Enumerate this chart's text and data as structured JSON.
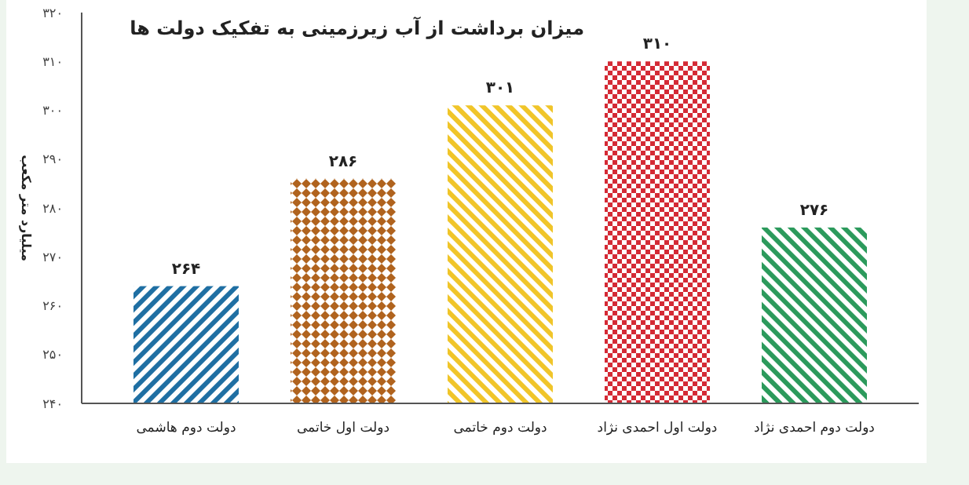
{
  "chart_data": {
    "type": "bar",
    "title": "میزان برداشت از آب زیرزمینی به تفکیک دولت ها",
    "ylabel": "میلیارد متر مکعب",
    "categories": [
      "دولت دوم هاشمی",
      "دولت اول خاتمی",
      "دولت دوم خاتمی",
      "دولت اول احمدی نژاد",
      "دولت دوم احمدی نژاد"
    ],
    "values": [
      264,
      286,
      301,
      310,
      276
    ],
    "value_labels": [
      "۲۶۴",
      "۲۸۶",
      "۳۰۱",
      "۳۱۰",
      "۲۷۶"
    ],
    "colors": [
      "#1f6fa3",
      "#b0631e",
      "#f0c52a",
      "#d42a35",
      "#2c9a5c"
    ],
    "ylim": [
      240,
      320
    ],
    "yticks": [
      {
        "value": 240,
        "label": "۲۴۰"
      },
      {
        "value": 250,
        "label": "۲۵۰"
      },
      {
        "value": 260,
        "label": "۲۶۰"
      },
      {
        "value": 270,
        "label": "۲۷۰"
      },
      {
        "value": 280,
        "label": "۲۸۰"
      },
      {
        "value": 290,
        "label": "۲۹۰"
      },
      {
        "value": 300,
        "label": "۳۰۰"
      },
      {
        "value": 310,
        "label": "۳۱۰"
      },
      {
        "value": 320,
        "label": "۳۲۰"
      }
    ],
    "grid": false
  }
}
